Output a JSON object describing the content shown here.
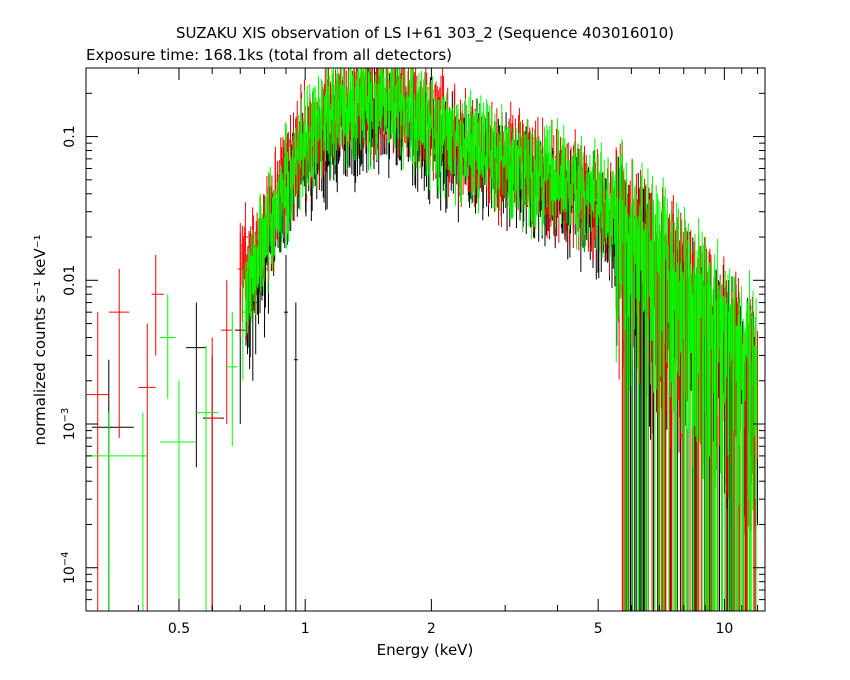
{
  "chart_data": {
    "type": "scatter",
    "title": "SUZAKU XIS observation of LS I+61 303_2 (Sequence 403016010)",
    "subtitle": "Exposure time: 168.1ks (total from all detectors)",
    "xlabel": "Energy (keV)",
    "ylabel": "normalized counts s⁻¹ keV⁻¹",
    "x_scale": "log",
    "y_scale": "log",
    "xlim": [
      0.3,
      12.5
    ],
    "ylim": [
      5e-05,
      0.3
    ],
    "x_ticks": [
      {
        "value": 0.5,
        "label": "0.5"
      },
      {
        "value": 1,
        "label": "1"
      },
      {
        "value": 2,
        "label": "2"
      },
      {
        "value": 5,
        "label": "5"
      },
      {
        "value": 10,
        "label": "10"
      }
    ],
    "y_ticks": [
      {
        "value": 0.0001,
        "base": "10",
        "exp": "−4"
      },
      {
        "value": 0.001,
        "base": "10",
        "exp": "−3"
      },
      {
        "value": 0.01,
        "label": "0.01"
      },
      {
        "value": 0.1,
        "label": "0.1"
      }
    ],
    "grid": false,
    "colors": {
      "black_series": "#000000",
      "red_series": "#ff0000",
      "green_series": "#00ff00"
    },
    "series": [
      {
        "color": "#000000",
        "points": [
          {
            "x": 0.34,
            "y": 0.00095,
            "xerr": [
              0.31,
              0.39
            ],
            "yerr": [
              5e-05,
              0.0028
            ]
          },
          {
            "x": 0.55,
            "y": 0.0034,
            "xerr": [
              0.52,
              0.58
            ],
            "yerr": [
              0.0005,
              0.007
            ]
          },
          {
            "x": 0.6,
            "y": 0.0011,
            "xerr": [
              0.57,
              0.64
            ],
            "yerr": [
              5e-05,
              0.003
            ]
          },
          {
            "x": 0.7,
            "y": 0.0045,
            "xerr": [
              0.68,
              0.72
            ],
            "yerr": [
              0.001,
              0.009
            ]
          },
          {
            "x": 0.75,
            "y": 0.007,
            "xerr": [
              0.73,
              0.77
            ],
            "yerr": [
              0.002,
              0.014
            ]
          },
          {
            "x": 0.8,
            "y": 0.012,
            "xerr": [
              0.79,
              0.81
            ],
            "yerr": [
              0.004,
              0.02
            ]
          },
          {
            "x": 0.9,
            "y": 0.006,
            "xerr": [
              0.89,
              0.91
            ],
            "yerr": [
              5e-05,
              0.015
            ]
          },
          {
            "x": 0.95,
            "y": 0.0028,
            "xerr": [
              0.94,
              0.96
            ],
            "yerr": [
              5e-05,
              0.007
            ]
          }
        ],
        "envelope": {
          "x": [
            0.72,
            0.8,
            0.9,
            1.0,
            1.2,
            1.4,
            1.7,
            2.0,
            2.5,
            3.0,
            4.0,
            5.0,
            5.8,
            6.0,
            7.0,
            8.0,
            9.0,
            10.0,
            11.0,
            12.0
          ],
          "y": [
            0.006,
            0.015,
            0.04,
            0.07,
            0.11,
            0.14,
            0.13,
            0.1,
            0.075,
            0.06,
            0.042,
            0.03,
            0.022,
            0.016,
            0.011,
            0.007,
            0.005,
            0.0035,
            0.0025,
            0.002
          ]
        }
      },
      {
        "color": "#ff0000",
        "points": [
          {
            "x": 0.32,
            "y": 0.0016,
            "xerr": [
              0.3,
              0.34
            ],
            "yerr": [
              5e-05,
              0.006
            ]
          },
          {
            "x": 0.36,
            "y": 0.006,
            "xerr": [
              0.34,
              0.38
            ],
            "yerr": [
              0.0008,
              0.012
            ]
          },
          {
            "x": 0.42,
            "y": 0.0018,
            "xerr": [
              0.4,
              0.44
            ],
            "yerr": [
              5e-05,
              0.005
            ]
          },
          {
            "x": 0.44,
            "y": 0.008,
            "xerr": [
              0.43,
              0.46
            ],
            "yerr": [
              0.003,
              0.015
            ]
          },
          {
            "x": 0.6,
            "y": 0.0011,
            "xerr": [
              0.58,
              0.63
            ],
            "yerr": [
              5e-05,
              0.004
            ]
          },
          {
            "x": 0.65,
            "y": 0.0045,
            "xerr": [
              0.63,
              0.67
            ],
            "yerr": [
              0.001,
              0.01
            ]
          },
          {
            "x": 0.7,
            "y": 0.012,
            "xerr": [
              0.69,
              0.71
            ],
            "yerr": [
              0.004,
              0.025
            ]
          },
          {
            "x": 0.72,
            "y": 0.02,
            "xerr": [
              0.71,
              0.73
            ],
            "yerr": [
              0.008,
              0.035
            ]
          }
        ],
        "envelope": {
          "x": [
            0.7,
            0.8,
            0.9,
            1.0,
            1.2,
            1.4,
            1.7,
            2.0,
            2.5,
            3.0,
            4.0,
            5.0,
            5.8,
            6.0,
            7.0,
            8.0,
            9.0,
            10.0,
            11.0,
            12.0
          ],
          "y": [
            0.01,
            0.025,
            0.06,
            0.1,
            0.16,
            0.2,
            0.18,
            0.13,
            0.09,
            0.07,
            0.05,
            0.036,
            0.026,
            0.019,
            0.013,
            0.009,
            0.006,
            0.0042,
            0.003,
            0.0024
          ]
        }
      },
      {
        "color": "#00ff00",
        "points": [
          {
            "x": 0.34,
            "y": 0.0006,
            "xerr": [
              0.3,
              0.4
            ],
            "yerr": [
              5e-05,
              0.0012
            ]
          },
          {
            "x": 0.41,
            "y": 0.0006,
            "xerr": [
              0.4,
              0.42
            ],
            "yerr": [
              5e-05,
              0.0012
            ]
          },
          {
            "x": 0.47,
            "y": 0.004,
            "xerr": [
              0.45,
              0.49
            ],
            "yerr": [
              0.0015,
              0.008
            ]
          },
          {
            "x": 0.5,
            "y": 0.00075,
            "xerr": [
              0.45,
              0.55
            ],
            "yerr": [
              5e-05,
              0.002
            ]
          },
          {
            "x": 0.58,
            "y": 0.0012,
            "xerr": [
              0.55,
              0.62
            ],
            "yerr": [
              5e-05,
              0.0035
            ]
          },
          {
            "x": 0.67,
            "y": 0.0025,
            "xerr": [
              0.65,
              0.69
            ],
            "yerr": [
              0.0007,
              0.006
            ]
          },
          {
            "x": 0.71,
            "y": 0.006,
            "xerr": [
              0.7,
              0.72
            ],
            "yerr": [
              0.002,
              0.012
            ]
          }
        ],
        "envelope": {
          "x": [
            0.72,
            0.8,
            0.9,
            1.0,
            1.2,
            1.4,
            1.7,
            2.0,
            2.5,
            3.0,
            4.0,
            5.0,
            5.8,
            6.0,
            7.0,
            8.0,
            9.0,
            10.0,
            11.0,
            12.0
          ],
          "y": [
            0.008,
            0.02,
            0.05,
            0.09,
            0.15,
            0.19,
            0.17,
            0.12,
            0.085,
            0.068,
            0.05,
            0.036,
            0.026,
            0.02,
            0.014,
            0.0095,
            0.0065,
            0.0046,
            0.0034,
            0.0026
          ]
        }
      }
    ]
  }
}
